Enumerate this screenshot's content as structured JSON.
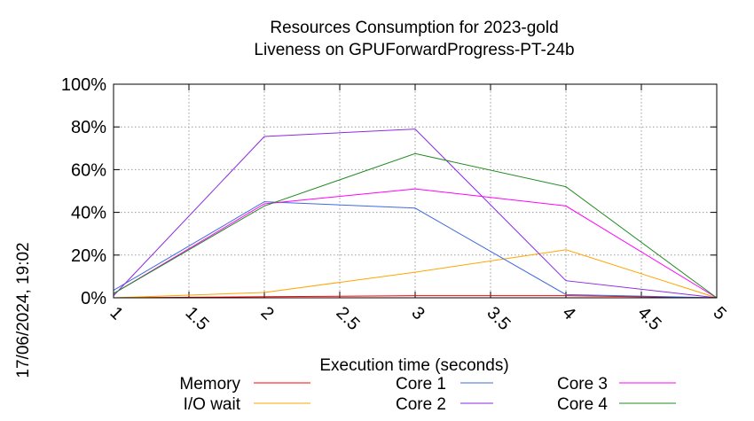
{
  "chart_data": {
    "type": "line",
    "title": "Resources Consumption for 2023-gold",
    "subtitle": "Liveness on GPUForwardProgress-PT-24b",
    "xlabel": "Execution time (seconds)",
    "ylabel": "",
    "side_label": "17/06/2024, 19:02",
    "xlim": [
      1,
      5
    ],
    "ylim": [
      0,
      100
    ],
    "x_ticks": [
      "1",
      "1.5",
      "2",
      "2.5",
      "3",
      "3.5",
      "4",
      "4.5",
      "5"
    ],
    "y_ticks": [
      "0%",
      "20%",
      "40%",
      "60%",
      "80%",
      "100%"
    ],
    "grid": true,
    "legend_position": "bottom",
    "x": [
      1,
      2,
      3,
      4,
      5
    ],
    "series": [
      {
        "name": "Memory",
        "color": "#ff0000",
        "values": [
          0,
          0.5,
          1,
          1,
          0
        ]
      },
      {
        "name": "I/O wait",
        "color": "#ffa500",
        "values": [
          0,
          2.5,
          12,
          22.5,
          0
        ]
      },
      {
        "name": "Core 1",
        "color": "#4169e1",
        "values": [
          3.5,
          45,
          42,
          1.5,
          0
        ]
      },
      {
        "name": "Core 2",
        "color": "#8a2be2",
        "values": [
          1,
          75.5,
          79,
          8,
          0
        ]
      },
      {
        "name": "Core 3",
        "color": "#ff00ff",
        "values": [
          2,
          44,
          51,
          43,
          0
        ]
      },
      {
        "name": "Core 4",
        "color": "#228b22",
        "values": [
          2,
          43,
          67.5,
          52,
          0
        ]
      }
    ]
  }
}
